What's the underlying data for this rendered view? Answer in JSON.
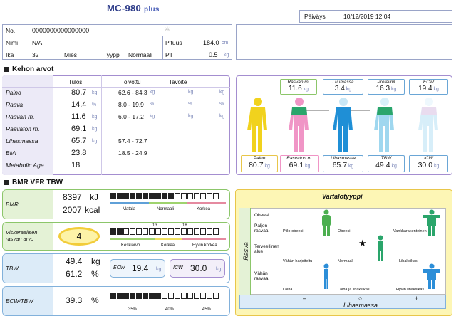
{
  "header": {
    "model": "MC-980",
    "model_suffix": "plus",
    "date_label": "Päiväys",
    "date_value": "10/12/2019 12:04"
  },
  "patient": {
    "no_label": "No.",
    "no_value": "0000000000000000",
    "name_label": "Nimi",
    "name_value": "N/A",
    "height_label": "Pituus",
    "height_value": "184.0",
    "height_unit": "cm",
    "age_label": "Ikä",
    "age_value": "32",
    "gender": "Mies",
    "type_label": "Tyyppi",
    "type_value": "Normaali",
    "pt_label": "PT",
    "pt_value": "0.5",
    "pt_unit": "kg"
  },
  "body_values": {
    "section_title": "Kehon arvot",
    "col_result": "Tulos",
    "col_recommended": "Toivottu",
    "col_target": "Tavoite",
    "rows": [
      {
        "label": "Paino",
        "value": "80.7",
        "unit": "kg",
        "range": "62.6 - 84.3",
        "range_unit": "kg",
        "t_unit": "kg",
        "t2_unit": "kg"
      },
      {
        "label": "Rasva",
        "value": "14.4",
        "unit": "%",
        "range": "8.0 - 19.9",
        "range_unit": "%",
        "t_unit": "%",
        "t2_unit": "%"
      },
      {
        "label": "Rasvan m.",
        "value": "11.6",
        "unit": "kg",
        "range": "6.0 - 17.2",
        "range_unit": "kg",
        "t_unit": "kg",
        "t2_unit": "kg"
      },
      {
        "label": "Rasvaton m.",
        "value": "69.1",
        "unit": "kg",
        "range": "",
        "range_unit": "",
        "t_unit": "",
        "t2_unit": ""
      },
      {
        "label": "Lihasmassa",
        "value": "65.7",
        "unit": "kg",
        "range": "57.4 - 72.7",
        "range_unit": "",
        "t_unit": "",
        "t2_unit": ""
      },
      {
        "label": "BMI",
        "value": "23.8",
        "unit": "",
        "range": "18.5 - 24.9",
        "range_unit": "",
        "t_unit": "",
        "t2_unit": ""
      },
      {
        "label": "Metabolic Age",
        "value": "18",
        "unit": "",
        "range": "",
        "range_unit": "",
        "t_unit": "",
        "t2_unit": ""
      }
    ]
  },
  "figures": {
    "fat_mass_label": "Rasvan m.",
    "fat_mass_value": "11.6",
    "fat_mass_unit": "kg",
    "bone_label": "Luumassa",
    "bone_value": "3.4",
    "bone_unit": "kg",
    "protein_label": "Proteiinit",
    "protein_value": "16.3",
    "protein_unit": "kg",
    "ecw_label": "ECW",
    "ecw_value": "19.4",
    "ecw_unit": "kg",
    "weight_label": "Paino",
    "weight_value": "80.7",
    "weight_unit": "kg",
    "ffm_label": "Rasvaton m.",
    "ffm_value": "69.1",
    "ffm_unit": "kg",
    "muscle_label": "Lihasmassa",
    "muscle_value": "65.7",
    "muscle_unit": "kg",
    "tbw_label": "TBW",
    "tbw_value": "49.4",
    "tbw_unit": "kg",
    "icw_label": "ICW",
    "icw_value": "30.0",
    "icw_unit": "kg"
  },
  "bmr_section": {
    "section_title": "BMR VFR TBW",
    "bmr_label": "BMR",
    "bmr_kj": "8397",
    "bmr_kj_unit": "kJ",
    "bmr_kcal": "2007",
    "bmr_kcal_unit": "kcal",
    "bmr_scale": [
      "Matala",
      "Normaali",
      "Korkea"
    ],
    "bmr_filled_segments": 10,
    "vfr_label": "Viskeraalisen rasvan arvo",
    "vfr_value": "4",
    "vfr_ticks": [
      "13",
      "18"
    ],
    "vfr_scale": [
      "Keskiarvo",
      "Korkea",
      "Hyvin korkea"
    ],
    "vfr_filled_segments": 2,
    "tbw_label": "TBW",
    "tbw_kg": "49.4",
    "tbw_kg_unit": "kg",
    "tbw_pct": "61.2",
    "tbw_pct_unit": "%",
    "ecw_label": "ECW",
    "ecw_value": "19.4",
    "ecw_unit": "kg",
    "icw_label": "ICW",
    "icw_value": "30.0",
    "icw_unit": "kg",
    "ecwtbw_label": "ECW/TBW",
    "ecwtbw_value": "39.3",
    "ecwtbw_unit": "%",
    "ecwtbw_ticks": [
      "35%",
      "40%",
      "45%"
    ],
    "ecwtbw_filled_segments": 8
  },
  "body_type": {
    "title": "Vartalotyyppi",
    "y_axis": "Rasva",
    "x_axis": "Lihasmassa",
    "row_labels": [
      "Obeesi",
      "Paljon rasvaa",
      "Terveellinen alue",
      "Vähän rasvaa"
    ],
    "cells": [
      "Piilo-obeesi",
      "Obeesi",
      "Vankkarakenteinen",
      "Vähän harjoiteltu",
      "Normaali",
      "Lihaksikas",
      "Laiha",
      "Laiha ja lihaksikas",
      "Hyvin lihaksikas"
    ],
    "minus": "–",
    "circle": "○",
    "plus_sign": "+",
    "marker": "★"
  },
  "colors": {
    "brand": "#2f3d8a",
    "fat": "#f1d21d",
    "ffm": "#f095c6",
    "muscle": "#1f8fd6",
    "protein": "#2aa56b",
    "water": "#9fd7ef",
    "green_frame": "#8cc66a",
    "purple_frame": "#a48ed0"
  }
}
